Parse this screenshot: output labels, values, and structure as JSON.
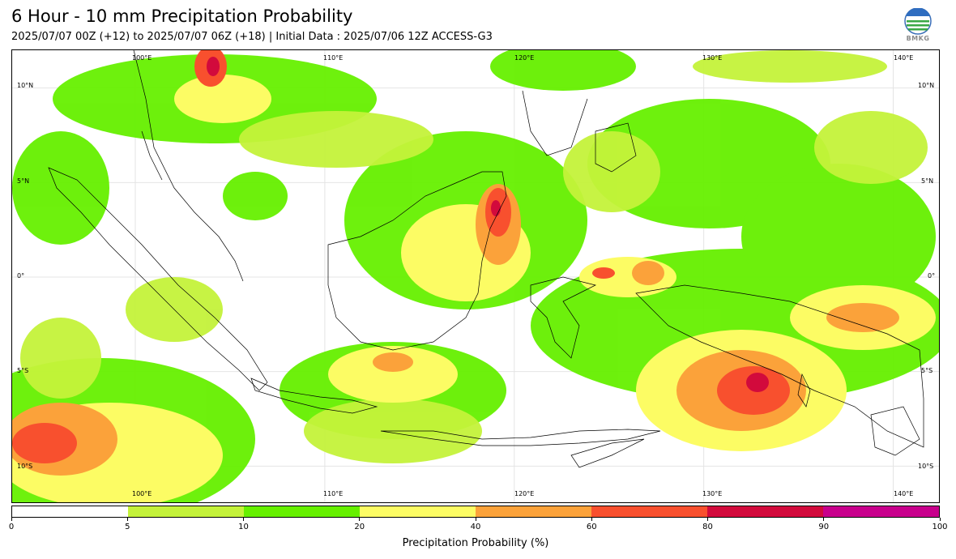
{
  "header": {
    "title": "6 Hour - 10 mm Precipitation Probability",
    "subtitle": "2025/07/07 00Z (+12) to 2025/07/07 06Z (+18) | Initial Data : 2025/07/06 12Z ACCESS-G3",
    "logo_text": "BMKG"
  },
  "map": {
    "lon_labels": [
      "100°E",
      "110°E",
      "120°E",
      "130°E",
      "140°E"
    ],
    "lat_labels": [
      "10°N",
      "5°N",
      "0°",
      "5°S",
      "10°S"
    ],
    "extent": {
      "lon_min": 93.5,
      "lon_max": 142.5,
      "lat_min": -12.0,
      "lat_max": 12.0
    },
    "land_color": "#ffffff",
    "coastline_color": "#000000",
    "grid_color": "#e4e4e4"
  },
  "colorbar": {
    "bins": [
      {
        "from": 0,
        "to": 5,
        "color": "#ffffff"
      },
      {
        "from": 5,
        "to": 10,
        "color": "#c4f23a"
      },
      {
        "from": 10,
        "to": 20,
        "color": "#66f000"
      },
      {
        "from": 20,
        "to": 40,
        "color": "#fcfc64"
      },
      {
        "from": 40,
        "to": 60,
        "color": "#fba23a"
      },
      {
        "from": 60,
        "to": 80,
        "color": "#f8502e"
      },
      {
        "from": 80,
        "to": 90,
        "color": "#d20a3c"
      },
      {
        "from": 90,
        "to": 100,
        "color": "#c8008c"
      }
    ],
    "ticks": [
      "0",
      "5",
      "10",
      "20",
      "40",
      "60",
      "80",
      "90",
      "100"
    ],
    "label": "Precipitation Probability (%)"
  }
}
